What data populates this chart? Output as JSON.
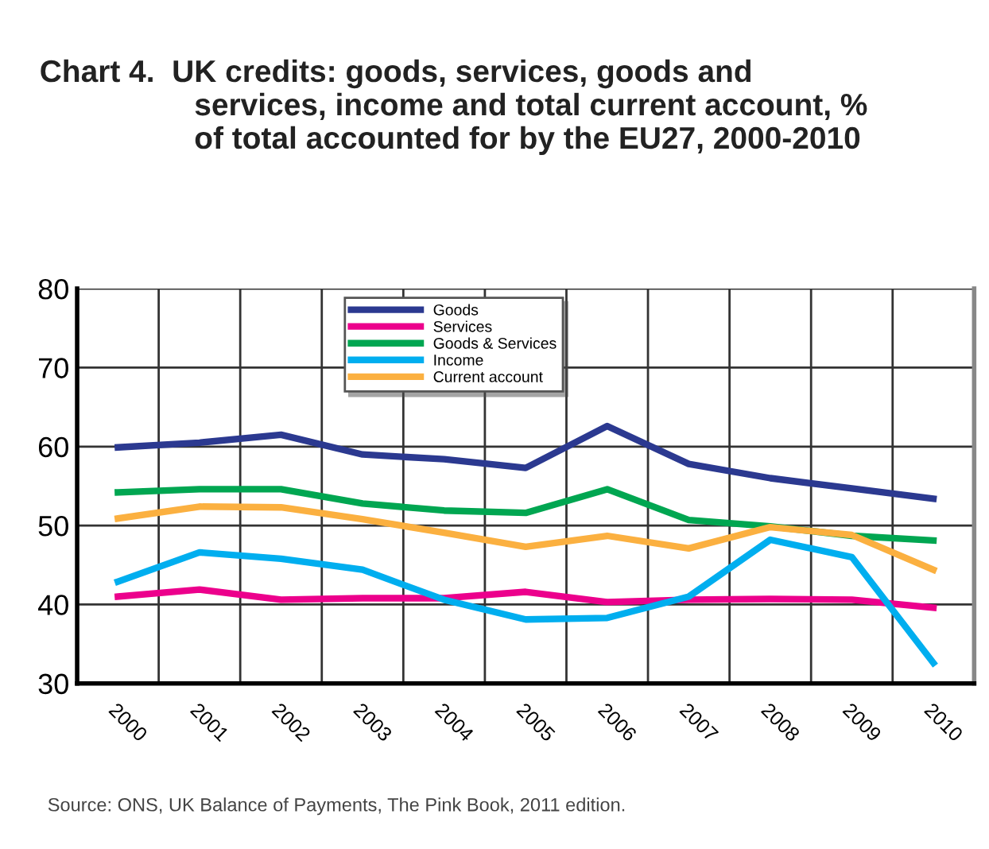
{
  "chart_data": {
    "type": "line",
    "title": "Chart 4.  UK credits: goods, services, goods and\n                  services, income and total current account, %\n                  of total accounted for by the EU27, 2000-2010",
    "categories": [
      "2000",
      "2001",
      "2002",
      "2003",
      "2004",
      "2005",
      "2006",
      "2007",
      "2008",
      "2009",
      "2010"
    ],
    "series": [
      {
        "name": "Goods",
        "color": "#2b3990",
        "values": [
          59.9,
          60.5,
          61.5,
          59.0,
          58.4,
          57.3,
          62.6,
          57.8,
          56.0,
          54.7,
          53.4
        ]
      },
      {
        "name": "Services",
        "color": "#ec008c",
        "values": [
          41.0,
          41.9,
          40.6,
          40.8,
          40.8,
          41.6,
          40.3,
          40.6,
          40.7,
          40.6,
          39.6
        ]
      },
      {
        "name": "Goods & Services",
        "color": "#00a651",
        "values": [
          54.2,
          54.6,
          54.6,
          52.8,
          51.9,
          51.6,
          54.6,
          50.7,
          49.9,
          48.7,
          48.1
        ]
      },
      {
        "name": "Income",
        "color": "#00aeef",
        "values": [
          42.9,
          46.6,
          45.8,
          44.4,
          40.6,
          38.1,
          38.3,
          41.0,
          48.2,
          46.0,
          32.6
        ]
      },
      {
        "name": "Current account",
        "color": "#fbb040",
        "values": [
          50.9,
          52.4,
          52.3,
          50.8,
          49.1,
          47.3,
          48.7,
          47.1,
          49.8,
          48.8,
          44.4
        ]
      }
    ],
    "ylim": [
      30,
      80
    ],
    "yticks": [
      30,
      40,
      50,
      60,
      70,
      80
    ],
    "grid": true,
    "legend": "top",
    "marker": "none",
    "line_style": "solid",
    "annotations": [
      "Source: ONS, UK Balance of Payments, The Pink Book, 2011 edition."
    ]
  }
}
